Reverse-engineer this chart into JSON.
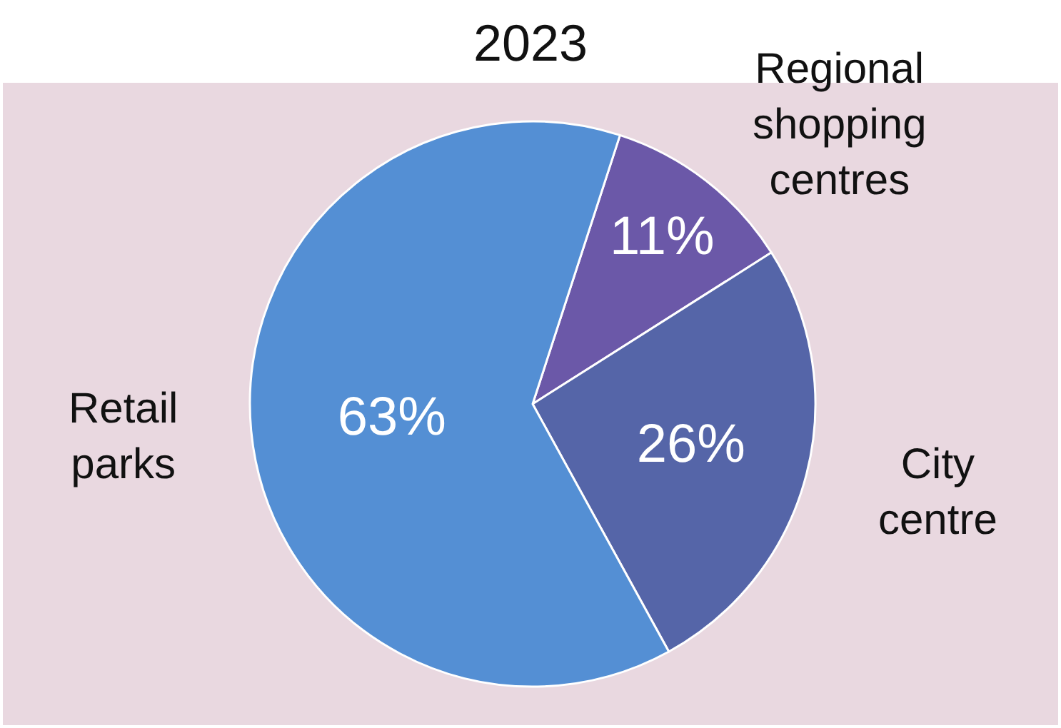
{
  "chart_data": {
    "type": "pie",
    "title": "2023",
    "categories": [
      "Regional shopping centres",
      "City centre",
      "Retail parks"
    ],
    "values": [
      11,
      26,
      63
    ],
    "colors": [
      "#6b58a8",
      "#5565a8",
      "#548fd4"
    ],
    "value_labels": [
      "11%",
      "26%",
      "63%"
    ],
    "legend": false
  }
}
